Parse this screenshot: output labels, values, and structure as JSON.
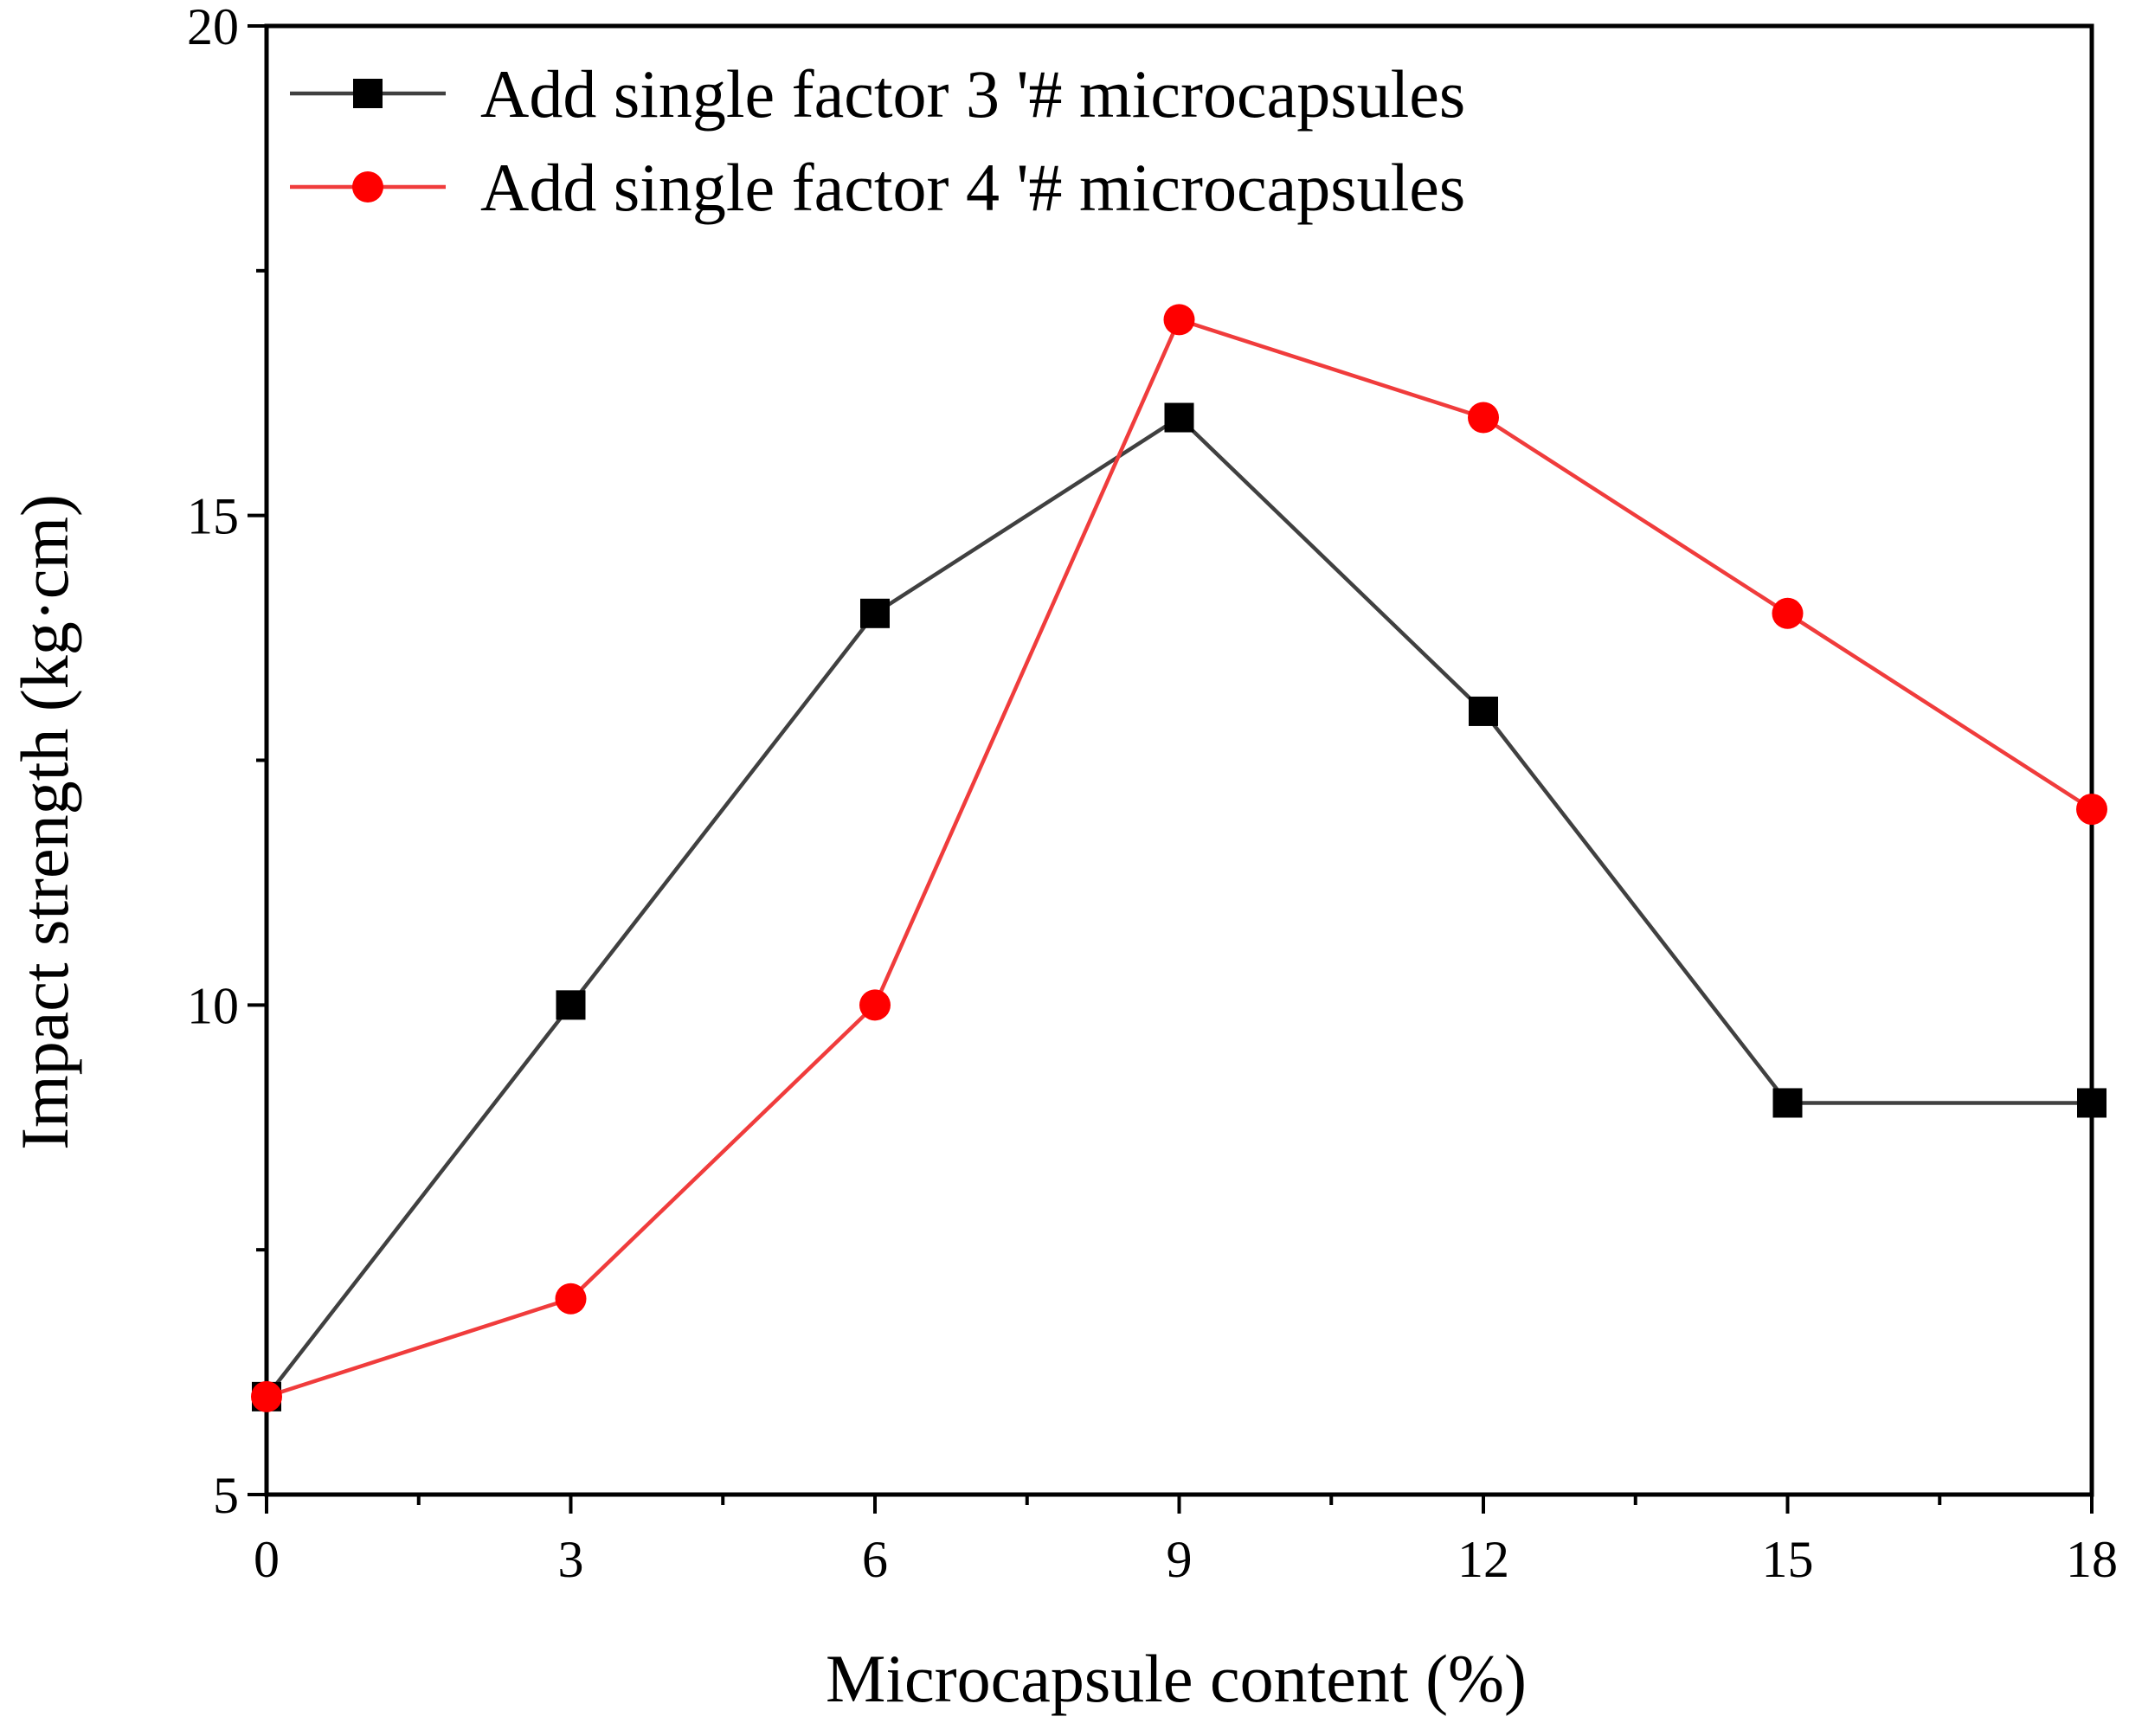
{
  "chart_data": {
    "type": "line",
    "title": "",
    "xlabel": "Microcapsule content (%)",
    "ylabel": "Impact strength (kg·cm)",
    "x": [
      0,
      3,
      6,
      9,
      12,
      15,
      18
    ],
    "xlim": [
      0,
      18
    ],
    "ylim": [
      5,
      20
    ],
    "x_ticks": [
      0,
      3,
      6,
      9,
      12,
      15,
      18
    ],
    "x_tick_labels": [
      "0",
      "3",
      "6",
      "9",
      "12",
      "15",
      "18"
    ],
    "y_ticks": [
      5,
      10,
      15,
      20
    ],
    "y_tick_labels": [
      "5",
      "10",
      "15",
      "20"
    ],
    "grid": false,
    "legend_position": "top-left",
    "series": [
      {
        "name": "Add single factor 3 '# microcapsules",
        "values": [
          6,
          10,
          14,
          16,
          13,
          9,
          9
        ],
        "color": "#404040",
        "marker": "square",
        "marker_color": "#000000"
      },
      {
        "name": "Add single factor 4 '# microcapsules",
        "values": [
          6,
          7,
          10,
          17,
          16,
          14,
          12
        ],
        "color": "#f03c3c",
        "marker": "circle",
        "marker_color": "#ff0000"
      }
    ]
  }
}
